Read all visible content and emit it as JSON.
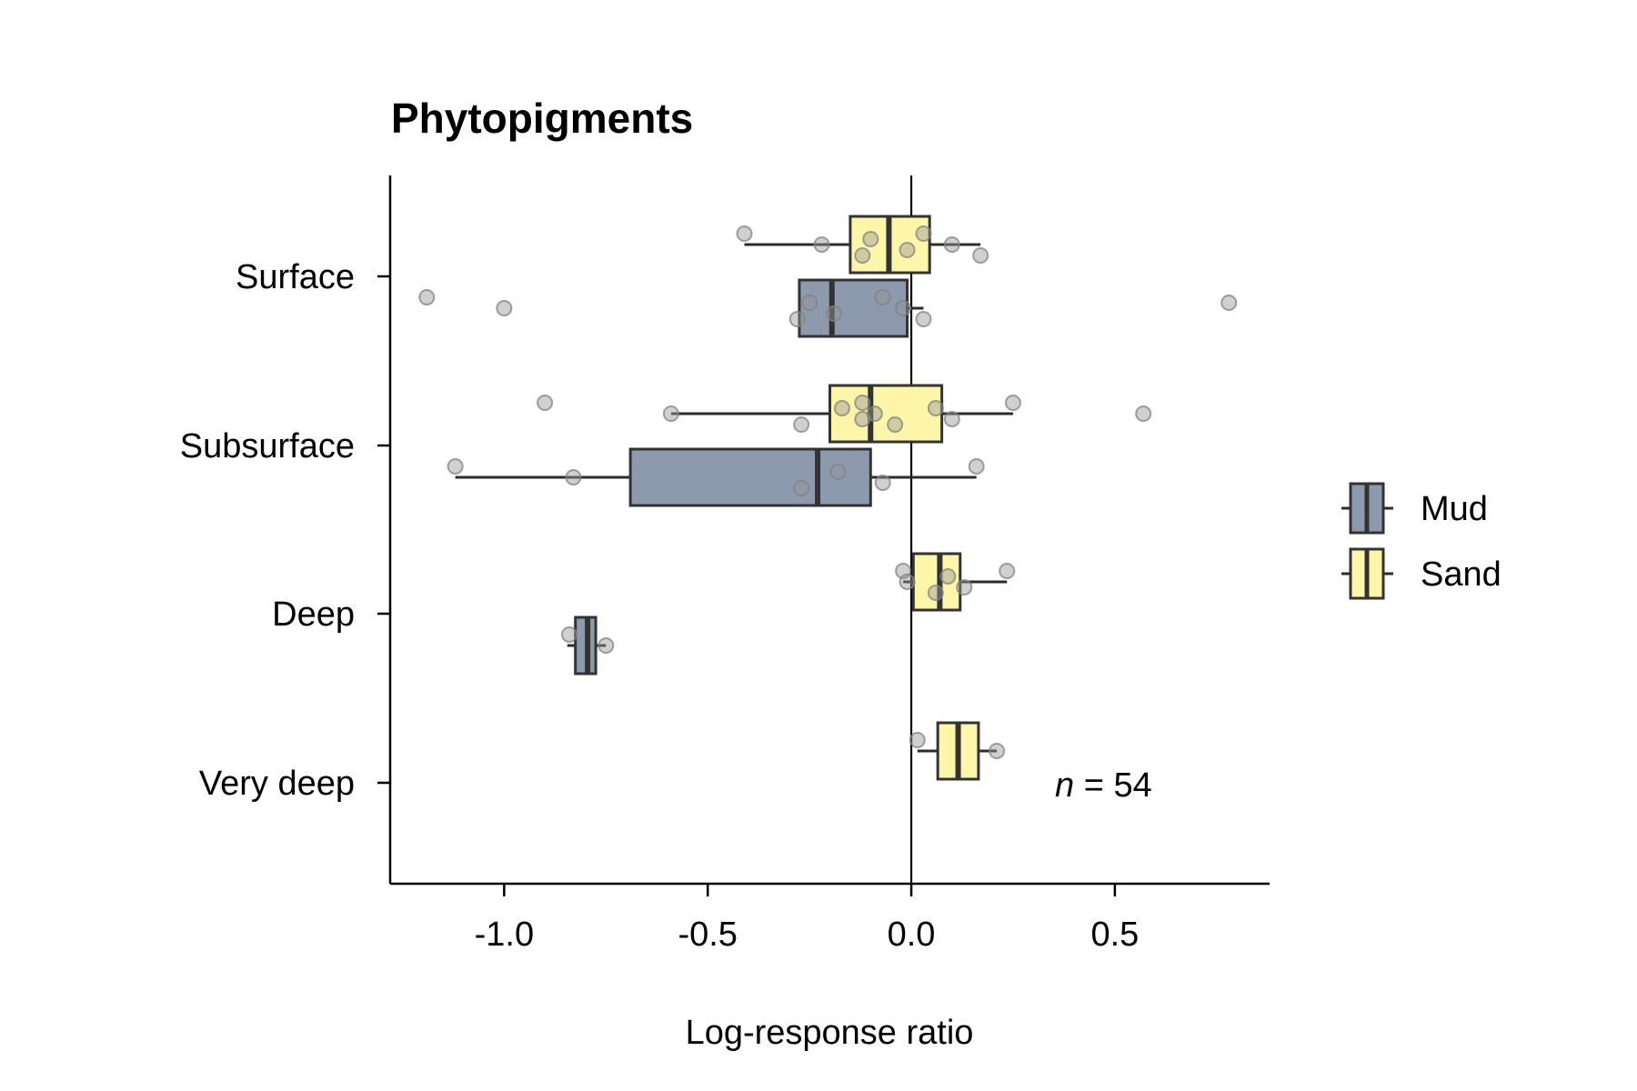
{
  "chart_data": {
    "type": "box",
    "title": "Phytopigments",
    "xlabel": "Log-response ratio",
    "ylabel": "",
    "xlim": [
      -1.28,
      0.88
    ],
    "x_ticks": [
      -1.0,
      -0.5,
      0.0,
      0.5
    ],
    "x_tick_labels": [
      "-1.0",
      "-0.5",
      "0.0",
      "0.5"
    ],
    "categories": [
      "Surface",
      "Subsurface",
      "Deep",
      "Very deep"
    ],
    "reference_line": 0.0,
    "legend": {
      "placement": "right",
      "entries": [
        "Mud",
        "Sand"
      ]
    },
    "annotation": {
      "italic": "n",
      "rest": " = 54"
    },
    "grid": false,
    "series": [
      {
        "name": "Mud",
        "color": "#8d9aae",
        "boxes": [
          {
            "category": "Surface",
            "q1": -0.275,
            "median": -0.195,
            "q3": -0.01,
            "whisker_low": -0.275,
            "whisker_high": 0.03,
            "points": [
              -1.19,
              -1.0,
              -0.28,
              -0.25,
              -0.19,
              -0.07,
              -0.02,
              0.03,
              0.78
            ]
          },
          {
            "category": "Subsurface",
            "q1": -0.69,
            "median": -0.23,
            "q3": -0.1,
            "whisker_low": -1.12,
            "whisker_high": 0.16,
            "points": [
              -1.12,
              -0.83,
              -0.27,
              -0.18,
              -0.07,
              0.16
            ]
          },
          {
            "category": "Deep",
            "q1": -0.825,
            "median": -0.795,
            "q3": -0.775,
            "whisker_low": -0.845,
            "whisker_high": -0.75,
            "points": [
              -0.84,
              -0.75
            ]
          }
        ]
      },
      {
        "name": "Sand",
        "color": "#fdf6a8",
        "boxes": [
          {
            "category": "Surface",
            "q1": -0.15,
            "median": -0.055,
            "q3": 0.045,
            "whisker_low": -0.41,
            "whisker_high": 0.17,
            "points": [
              -0.41,
              -0.22,
              -0.12,
              -0.1,
              -0.01,
              0.03,
              0.1,
              0.17
            ]
          },
          {
            "category": "Subsurface",
            "q1": -0.2,
            "median": -0.1,
            "q3": 0.075,
            "whisker_low": -0.59,
            "whisker_high": 0.25,
            "points": [
              -0.9,
              -0.59,
              -0.27,
              -0.17,
              -0.12,
              -0.12,
              -0.09,
              -0.04,
              0.06,
              0.1,
              0.25,
              0.57
            ]
          },
          {
            "category": "Deep",
            "q1": 0.005,
            "median": 0.07,
            "q3": 0.12,
            "whisker_low": -0.02,
            "whisker_high": 0.235,
            "points": [
              -0.02,
              -0.01,
              0.06,
              0.09,
              0.13,
              0.235
            ]
          },
          {
            "category": "Very deep",
            "q1": 0.065,
            "median": 0.115,
            "q3": 0.165,
            "whisker_low": 0.015,
            "whisker_high": 0.21,
            "points": [
              0.015,
              0.21
            ]
          }
        ]
      }
    ]
  }
}
